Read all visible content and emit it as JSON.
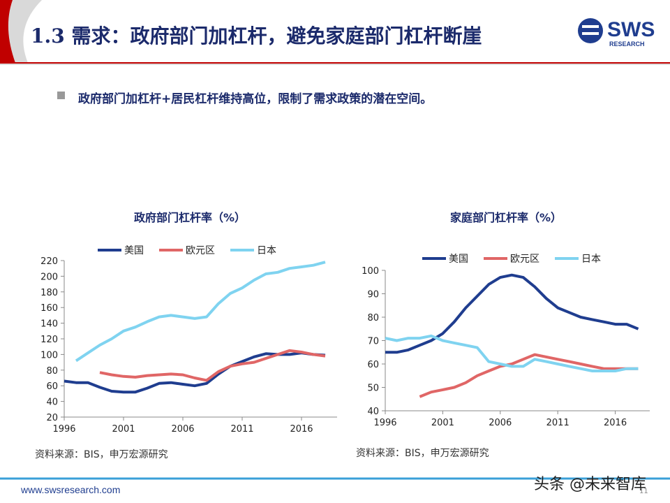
{
  "header": {
    "title": "1.3 需求：政府部门加杠杆，避免家庭部门杠杆断崖",
    "logo": "SWS",
    "logo_sub": "RESEARCH"
  },
  "bullet": "政府部门加杠杆+居民杠杆维持高位，限制了需求政策的潜在空间。",
  "chart_data": [
    {
      "type": "line",
      "title": "政府部门杠杆率（%）",
      "source": "资料来源：BIS，申万宏源研究",
      "x": [
        1996,
        1997,
        1998,
        1999,
        2000,
        2001,
        2002,
        2003,
        2004,
        2005,
        2006,
        2007,
        2008,
        2009,
        2010,
        2011,
        2012,
        2013,
        2014,
        2015,
        2016,
        2017,
        2018
      ],
      "xlim": [
        1996,
        2019
      ],
      "xticks": [
        1996,
        2001,
        2006,
        2011,
        2016
      ],
      "ylim": [
        20,
        220
      ],
      "yticks": [
        20,
        40,
        60,
        80,
        100,
        120,
        140,
        160,
        180,
        200,
        220
      ],
      "legend": "top",
      "series": [
        {
          "name": "美国",
          "color": "#1f3d8f",
          "values": [
            66,
            64,
            64,
            58,
            53,
            52,
            52,
            57,
            63,
            64,
            62,
            60,
            63,
            75,
            85,
            91,
            97,
            101,
            100,
            100,
            102,
            100,
            99
          ]
        },
        {
          "name": "欧元区",
          "color": "#e06666",
          "values": [
            null,
            null,
            null,
            77,
            74,
            72,
            71,
            73,
            74,
            75,
            74,
            70,
            67,
            78,
            85,
            88,
            90,
            95,
            100,
            105,
            103,
            100,
            98
          ]
        },
        {
          "name": "日本",
          "color": "#7fd3f0",
          "values": [
            null,
            92,
            102,
            112,
            120,
            130,
            135,
            142,
            148,
            150,
            148,
            146,
            148,
            165,
            178,
            185,
            195,
            203,
            205,
            210,
            212,
            214,
            218
          ]
        }
      ]
    },
    {
      "type": "line",
      "title": "家庭部门杠杆率（%）",
      "source": "资料来源：BIS，申万宏源研究",
      "x": [
        1996,
        1997,
        1998,
        1999,
        2000,
        2001,
        2002,
        2003,
        2004,
        2005,
        2006,
        2007,
        2008,
        2009,
        2010,
        2011,
        2012,
        2013,
        2014,
        2015,
        2016,
        2017,
        2018
      ],
      "xlim": [
        1996,
        2019
      ],
      "xticks": [
        1996,
        2001,
        2006,
        2011,
        2016
      ],
      "ylim": [
        40,
        100
      ],
      "yticks": [
        40,
        50,
        60,
        70,
        80,
        90,
        100
      ],
      "legend": "top",
      "series": [
        {
          "name": "美国",
          "color": "#1f3d8f",
          "values": [
            65,
            65,
            66,
            68,
            70,
            73,
            78,
            84,
            89,
            94,
            97,
            98,
            97,
            93,
            88,
            84,
            82,
            80,
            79,
            78,
            77,
            77,
            75
          ]
        },
        {
          "name": "欧元区",
          "color": "#e06666",
          "values": [
            null,
            null,
            null,
            46,
            48,
            49,
            50,
            52,
            55,
            57,
            59,
            60,
            62,
            64,
            63,
            62,
            61,
            60,
            59,
            58,
            58,
            58,
            58
          ]
        },
        {
          "name": "日本",
          "color": "#7fd3f0",
          "values": [
            71,
            70,
            71,
            71,
            72,
            70,
            69,
            68,
            67,
            61,
            60,
            59,
            59,
            62,
            61,
            60,
            59,
            58,
            57,
            57,
            57,
            58,
            58
          ]
        }
      ]
    }
  ],
  "footer": {
    "url": "www.swsresearch.com",
    "watermark": "头条 @未来智库",
    "page": "11"
  }
}
